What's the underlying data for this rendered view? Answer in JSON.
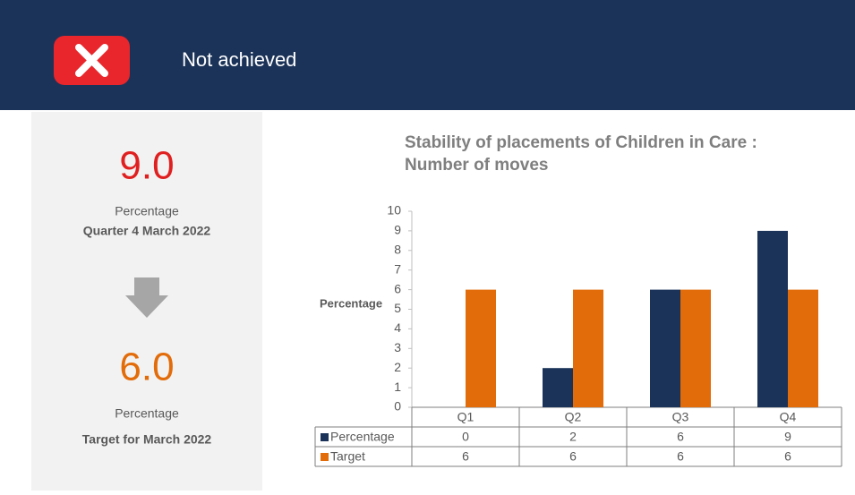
{
  "header": {
    "status": "Not achieved"
  },
  "summary": {
    "actual": {
      "value": "9.0",
      "unit": "Percentage",
      "period": "Quarter 4 March 2022"
    },
    "target": {
      "value": "6.0",
      "unit": "Percentage",
      "period": "Target for March 2022"
    }
  },
  "chart_data": {
    "type": "bar",
    "title": [
      "Stability of placements of Children in Care :",
      "Number of moves"
    ],
    "y_label": "Percentage",
    "categories": [
      "Q1",
      "Q2",
      "Q3",
      "Q4"
    ],
    "series": [
      {
        "name": "Percentage",
        "color": "#1b3358",
        "values": [
          0,
          2,
          6,
          9
        ]
      },
      {
        "name": "Target",
        "color": "#e36c0a",
        "values": [
          6,
          6,
          6,
          6
        ]
      }
    ],
    "ylim": [
      0,
      10
    ],
    "yticks": [
      0,
      1,
      2,
      3,
      4,
      5,
      6,
      7,
      8,
      9,
      10
    ],
    "grid": false
  }
}
